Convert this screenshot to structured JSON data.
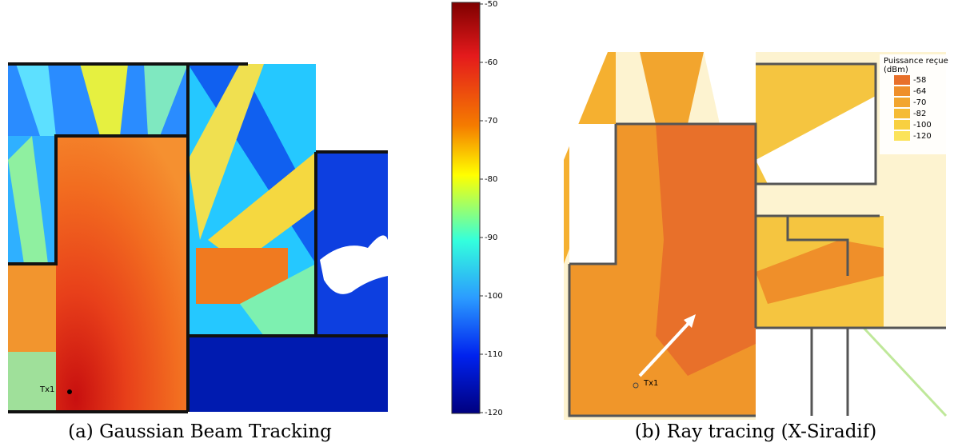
{
  "figure_a": {
    "caption": "(a) Gaussian Beam Tracking",
    "tx_label": "Tx1",
    "colorbar": {
      "range": [
        -50,
        -120
      ],
      "ticks": [
        -50,
        -60,
        -70,
        -80,
        -90,
        -100,
        -110,
        -120
      ]
    }
  },
  "figure_b": {
    "caption": "(b) Ray tracing (X-Siradif)",
    "tx_label": "Tx1",
    "legend": {
      "title": "Puissance reçue",
      "unit": "(dBm)",
      "entries": [
        {
          "color": "#e8702a",
          "label": "-58"
        },
        {
          "color": "#ef8f2a",
          "label": "-64"
        },
        {
          "color": "#f2a52e",
          "label": "-70"
        },
        {
          "color": "#f5bb35",
          "label": "-82"
        },
        {
          "color": "#f8d040",
          "label": "-100"
        },
        {
          "color": "#fbe35a",
          "label": "-120"
        }
      ]
    }
  }
}
